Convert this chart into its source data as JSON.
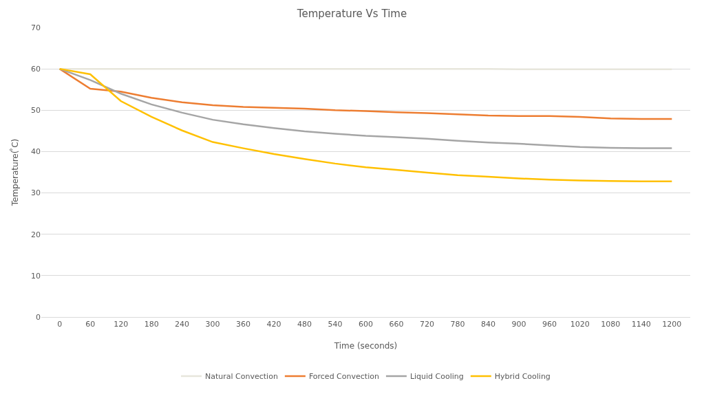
{
  "chart_data": {
    "type": "line",
    "title": "Temperature Vs Time",
    "xlabel": "Time (seconds)",
    "ylabel": "Temperature( ̊C)",
    "categories": [
      "0",
      "60",
      "120",
      "180",
      "240",
      "300",
      "360",
      "420",
      "480",
      "540",
      "600",
      "660",
      "720",
      "780",
      "840",
      "900",
      "960",
      "1020",
      "1080",
      "1140",
      "1200"
    ],
    "series": [
      {
        "name": "Natural Convection",
        "color": "#e7e6dc",
        "values": [
          60,
          60,
          60,
          60,
          60,
          60,
          60,
          60,
          60,
          60,
          60,
          60,
          60,
          60,
          60,
          59.9,
          59.9,
          59.9,
          59.9,
          59.9,
          59.9
        ]
      },
      {
        "name": "Forced Convection",
        "color": "#ed7d31",
        "values": [
          60,
          55.2,
          54.5,
          53,
          51.9,
          51.2,
          50.8,
          50.6,
          50.4,
          50,
          49.8,
          49.5,
          49.3,
          49,
          48.7,
          48.6,
          48.6,
          48.4,
          48,
          47.9,
          47.9
        ]
      },
      {
        "name": "Liquid Cooling",
        "color": "#a5a5a5",
        "values": [
          60,
          57.3,
          54,
          51.4,
          49.4,
          47.7,
          46.6,
          45.7,
          44.9,
          44.3,
          43.8,
          43.5,
          43.1,
          42.6,
          42.2,
          41.9,
          41.5,
          41.1,
          40.9,
          40.8,
          40.8
        ]
      },
      {
        "name": "Hybrid Cooling",
        "color": "#ffc000",
        "values": [
          60,
          58.7,
          52.2,
          48.4,
          45.1,
          42.3,
          40.8,
          39.4,
          38.2,
          37.1,
          36.2,
          35.6,
          34.9,
          34.3,
          33.9,
          33.5,
          33.2,
          33,
          32.9,
          32.8,
          32.8
        ]
      }
    ],
    "ylim": [
      0,
      70
    ],
    "yticks": [
      0,
      10,
      20,
      30,
      40,
      50,
      60,
      70
    ],
    "grid": "y",
    "legend": "bottom",
    "marker": "none",
    "line_style": "solid"
  }
}
